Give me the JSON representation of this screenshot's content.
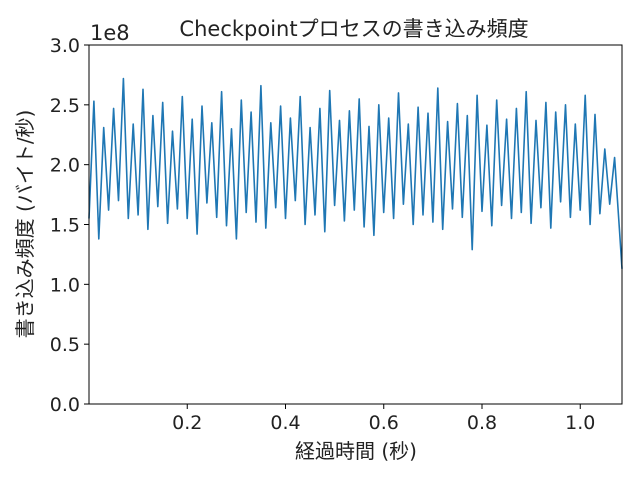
{
  "chart_data": {
    "type": "line",
    "title": "Checkpointプロセスの書き込み頻度",
    "xlabel": "経過時間 (秒)",
    "ylabel": "書き込み頻度 (バイト/秒)",
    "y_offset_label": "1e8",
    "xlim": [
      0.0,
      1.085
    ],
    "ylim": [
      0.0,
      3.0
    ],
    "x_ticks": [
      0.2,
      0.4,
      0.6,
      0.8,
      1.0
    ],
    "x_tick_labels": [
      "0.2",
      "0.4",
      "0.6",
      "0.8",
      "1.0"
    ],
    "y_ticks": [
      0.0,
      0.5,
      1.0,
      1.5,
      2.0,
      2.5,
      3.0
    ],
    "y_tick_labels": [
      "0.0",
      "0.5",
      "1.0",
      "1.5",
      "2.0",
      "2.5",
      "3.0"
    ],
    "grid": false,
    "color": "#1f77b4",
    "series": [
      {
        "x": [
          0.0,
          0.01,
          0.02,
          0.03,
          0.04,
          0.05,
          0.06,
          0.07,
          0.08,
          0.09,
          0.1,
          0.11,
          0.12,
          0.13,
          0.14,
          0.15,
          0.16,
          0.17,
          0.18,
          0.19,
          0.2,
          0.21,
          0.22,
          0.23,
          0.24,
          0.25,
          0.26,
          0.27,
          0.28,
          0.29,
          0.3,
          0.31,
          0.32,
          0.33,
          0.34,
          0.35,
          0.36,
          0.37,
          0.38,
          0.39,
          0.4,
          0.41,
          0.42,
          0.43,
          0.44,
          0.45,
          0.46,
          0.47,
          0.48,
          0.49,
          0.5,
          0.51,
          0.52,
          0.53,
          0.54,
          0.55,
          0.56,
          0.57,
          0.58,
          0.59,
          0.6,
          0.61,
          0.62,
          0.63,
          0.64,
          0.65,
          0.66,
          0.67,
          0.68,
          0.69,
          0.7,
          0.71,
          0.72,
          0.73,
          0.74,
          0.75,
          0.76,
          0.77,
          0.78,
          0.79,
          0.8,
          0.81,
          0.82,
          0.83,
          0.84,
          0.85,
          0.86,
          0.87,
          0.88,
          0.89,
          0.9,
          0.91,
          0.92,
          0.93,
          0.94,
          0.95,
          0.96,
          0.97,
          0.98,
          0.99,
          1.0,
          1.01,
          1.02,
          1.03,
          1.04,
          1.05,
          1.06,
          1.07,
          1.08,
          1.085
        ],
        "y": [
          1.55,
          2.53,
          1.38,
          2.31,
          1.62,
          2.47,
          1.7,
          2.72,
          1.55,
          2.34,
          1.58,
          2.63,
          1.46,
          2.41,
          1.65,
          2.52,
          1.51,
          2.28,
          1.63,
          2.57,
          1.55,
          2.38,
          1.42,
          2.49,
          1.68,
          2.35,
          1.56,
          2.61,
          1.49,
          2.3,
          1.38,
          2.54,
          1.6,
          2.44,
          1.52,
          2.66,
          1.47,
          2.35,
          1.64,
          2.49,
          1.55,
          2.39,
          1.7,
          2.57,
          1.5,
          2.31,
          1.58,
          2.47,
          1.44,
          2.62,
          1.66,
          2.37,
          1.53,
          2.45,
          1.62,
          2.55,
          1.48,
          2.32,
          1.41,
          2.5,
          1.6,
          2.39,
          1.55,
          2.6,
          1.67,
          2.34,
          1.5,
          2.48,
          1.58,
          2.43,
          1.52,
          2.64,
          1.46,
          2.36,
          1.63,
          2.51,
          1.56,
          2.41,
          1.29,
          2.58,
          1.61,
          2.33,
          1.49,
          2.54,
          1.66,
          2.38,
          1.55,
          2.47,
          1.6,
          2.61,
          1.51,
          2.37,
          1.64,
          2.52,
          1.47,
          2.44,
          1.69,
          2.5,
          1.56,
          2.34,
          1.62,
          2.58,
          1.5,
          2.42,
          1.59,
          2.13,
          1.67,
          2.06,
          1.45,
          1.13
        ]
      }
    ]
  }
}
